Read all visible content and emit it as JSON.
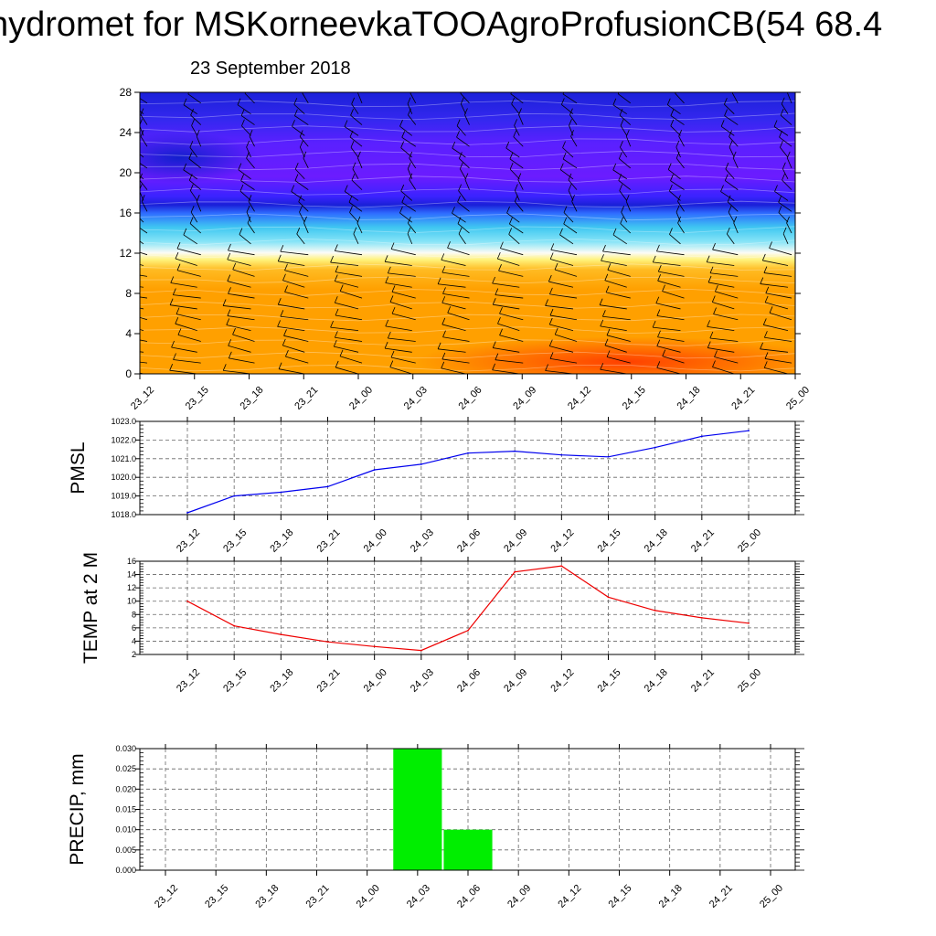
{
  "header": {
    "title": "hydromet for MSKorneevkaTOOAgroProfusionCB(54 68.4",
    "subtitle": "23 September 2018"
  },
  "chart_data": [
    {
      "type": "heatmap",
      "name": "height-time-section",
      "x_categories": [
        "23_12",
        "23_15",
        "23_18",
        "23_21",
        "24_00",
        "24_03",
        "24_06",
        "24_09",
        "24_12",
        "24_15",
        "24_18",
        "24_21",
        "25_00"
      ],
      "yticks": [
        0,
        4,
        8,
        12,
        16,
        20,
        24,
        28
      ],
      "ylim": [
        0,
        28
      ],
      "colors": {
        "warm_low": "#ff3b00",
        "orange": "#ffa000",
        "yellow": "#fff27a",
        "white": "#fbfbf6",
        "cyan": "#3fc7f1",
        "blue": "#1d3bff",
        "violet": "#6b1cff",
        "deep_blue": "#1a20d8"
      }
    },
    {
      "type": "line",
      "name": "pmsl",
      "ylabel": "PMSL",
      "x": [
        "23_12",
        "23_15",
        "23_18",
        "23_21",
        "24_00",
        "24_03",
        "24_06",
        "24_09",
        "24_12",
        "24_15",
        "24_18",
        "24_21",
        "25_00"
      ],
      "values": [
        1018.1,
        1019.0,
        1019.2,
        1019.5,
        1020.4,
        1020.7,
        1021.3,
        1021.4,
        1021.2,
        1021.1,
        1021.6,
        1022.2,
        1022.5
      ],
      "ylim": [
        1018.0,
        1023.0
      ],
      "yticks": [
        "1018.0",
        "1019.0",
        "1020.0",
        "1021.0",
        "1022.0",
        "1023.0"
      ],
      "color": "#0000ee",
      "grid": true
    },
    {
      "type": "line",
      "name": "temp2m",
      "ylabel": "TEMP at 2 M",
      "x": [
        "23_12",
        "23_15",
        "23_18",
        "23_21",
        "24_00",
        "24_03",
        "24_06",
        "24_09",
        "24_12",
        "24_15",
        "24_18",
        "24_21",
        "25_00"
      ],
      "values": [
        10.0,
        6.3,
        5.0,
        3.9,
        3.2,
        2.6,
        5.6,
        14.4,
        15.3,
        10.6,
        8.6,
        7.5,
        6.7
      ],
      "ylim": [
        2,
        16
      ],
      "yticks": [
        "2",
        "4",
        "6",
        "8",
        "10",
        "12",
        "14",
        "16"
      ],
      "color": "#ee0000",
      "grid": true
    },
    {
      "type": "bar",
      "name": "precip",
      "ylabel": "PRECIP, mm",
      "categories": [
        "23_12",
        "23_15",
        "23_18",
        "23_21",
        "24_00",
        "24_03",
        "24_06",
        "24_09",
        "24_12",
        "24_15",
        "24_18",
        "24_21",
        "25_00"
      ],
      "values": [
        0,
        0,
        0,
        0,
        0,
        0.03,
        0.01,
        0,
        0,
        0,
        0,
        0,
        0
      ],
      "ylim": [
        0,
        0.03
      ],
      "yticks": [
        "0.000",
        "0.005",
        "0.010",
        "0.015",
        "0.020",
        "0.025",
        "0.030"
      ],
      "color": "#00ee00",
      "grid": true
    }
  ]
}
